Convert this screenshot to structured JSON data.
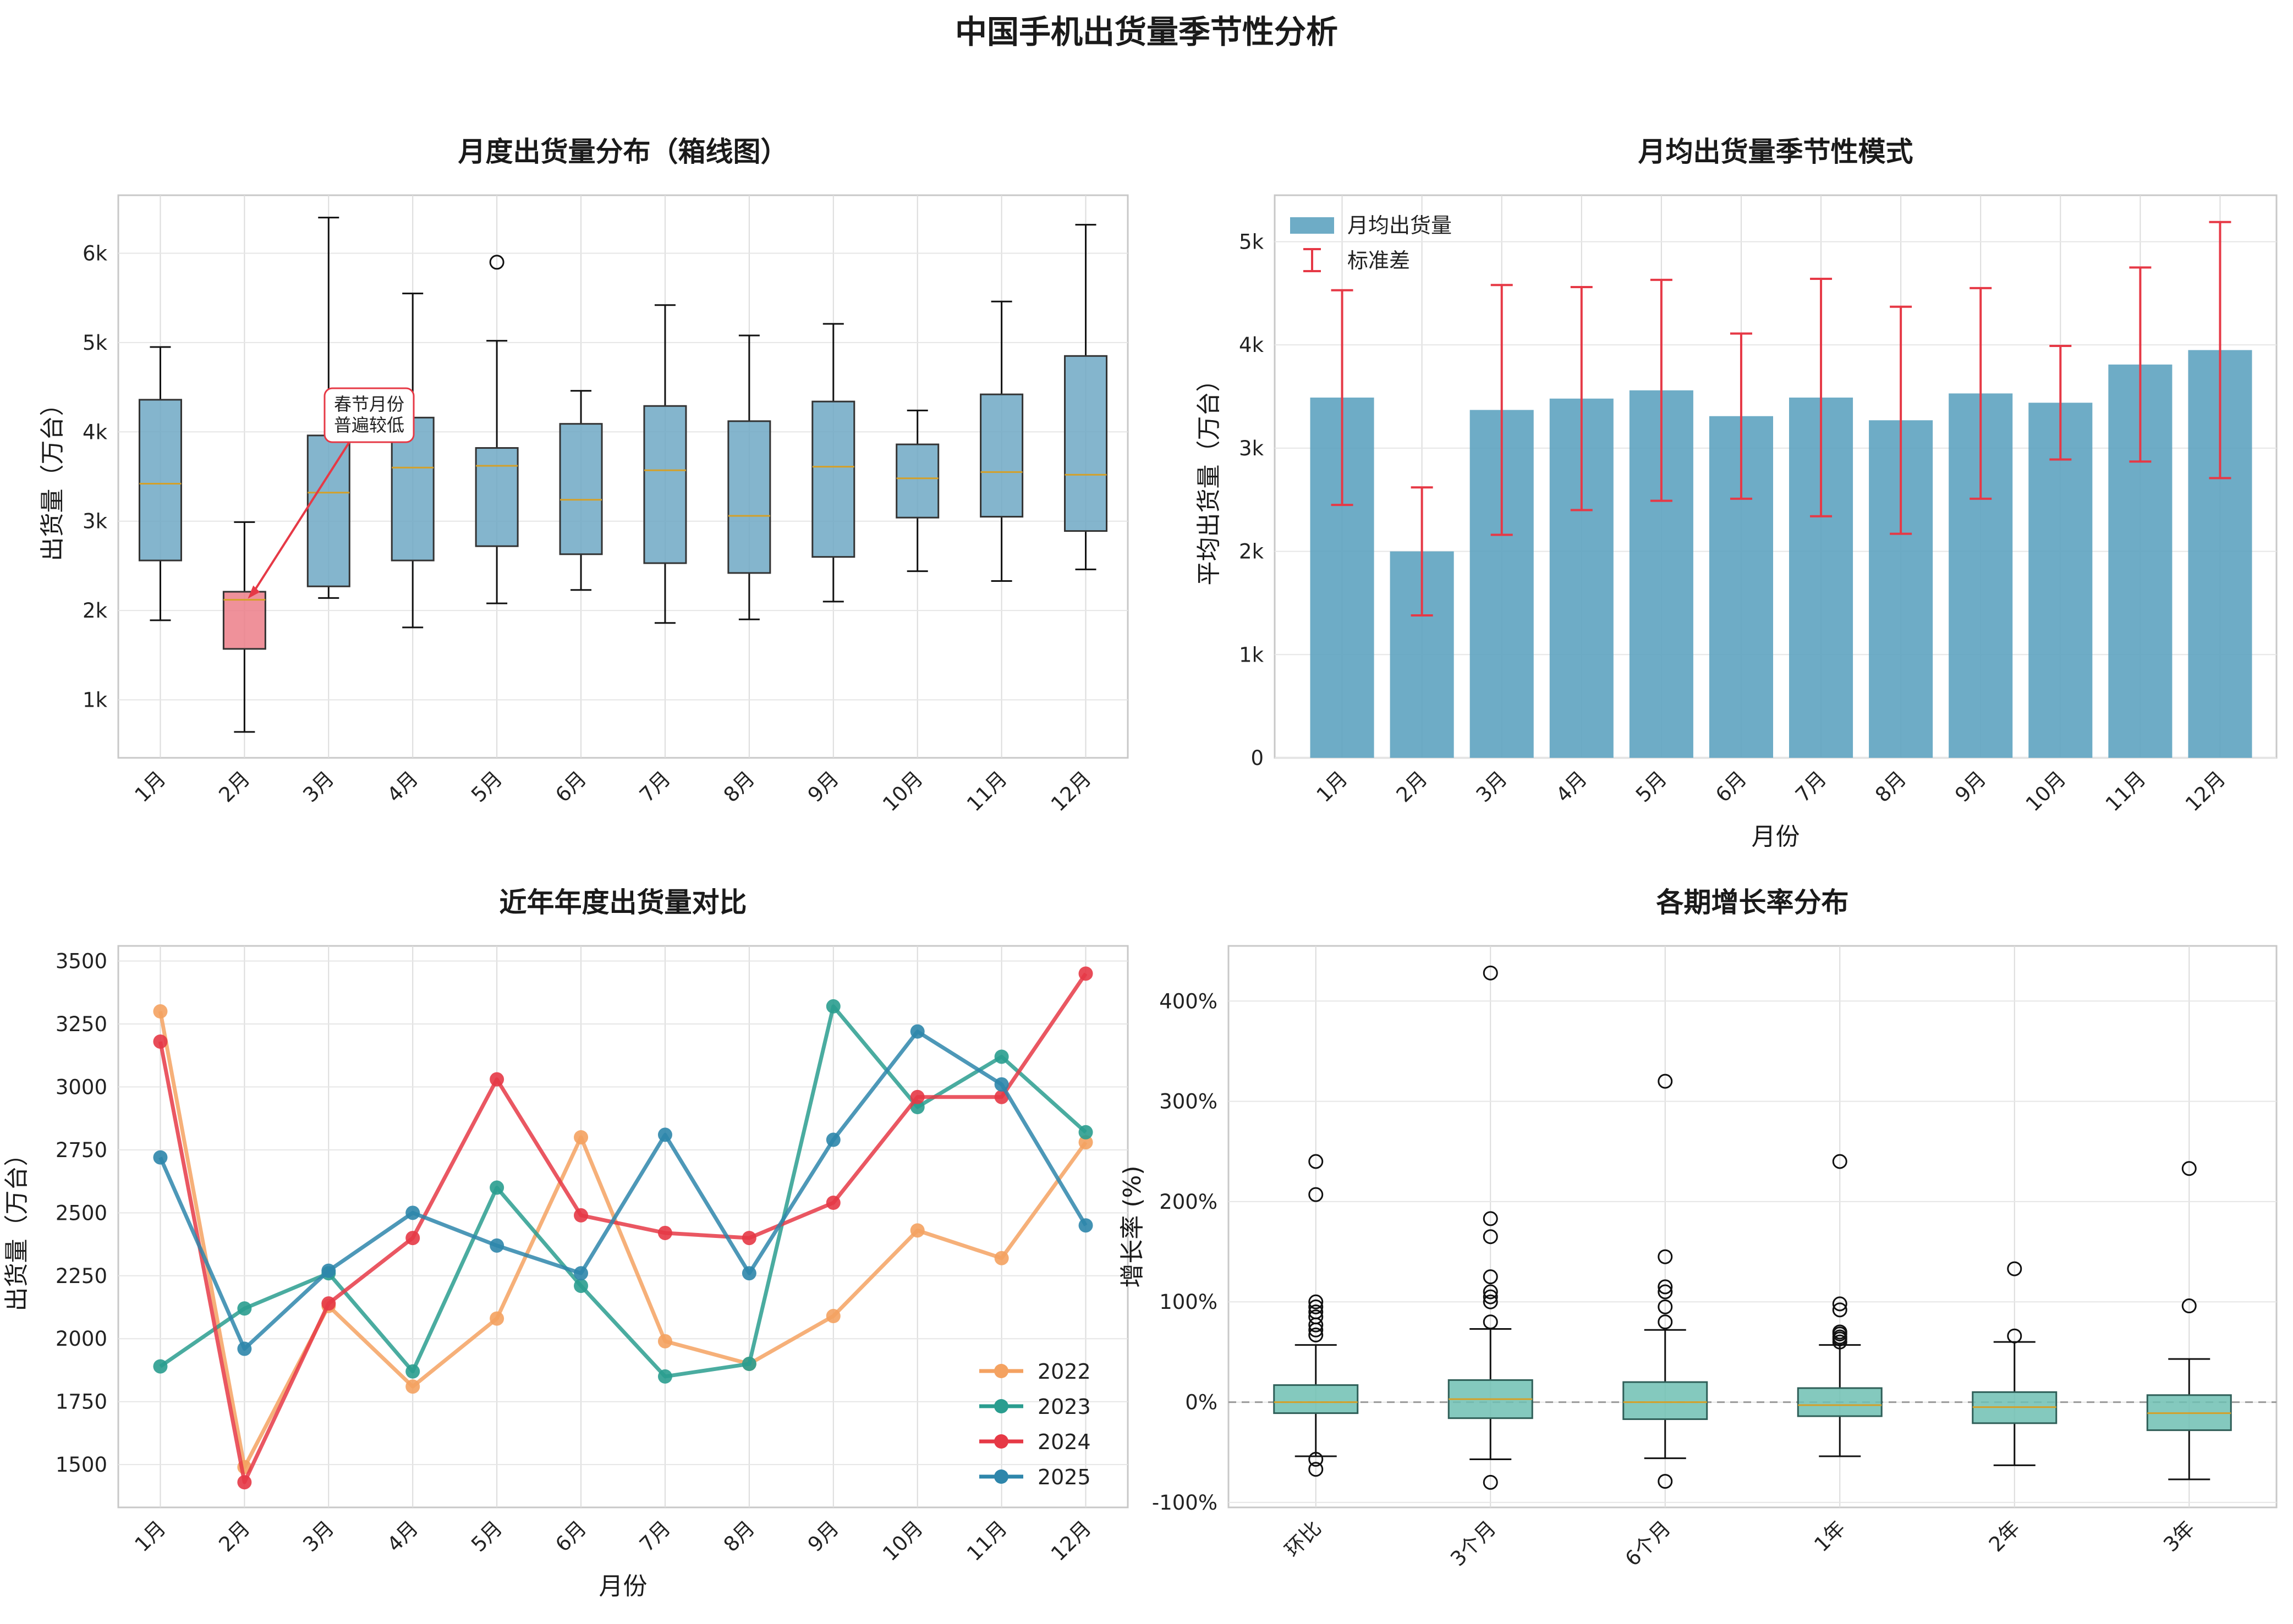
{
  "figure": {
    "title": "中国手机出货量季节性分析"
  },
  "colors": {
    "box_fill": "#6fa8c4",
    "box_highlight": "#ec7e88",
    "bar": "#5ea3c0",
    "error": "#e63946",
    "growth_box": "#6ec0b3",
    "median": "#d4a029",
    "s2022": "#f4a261",
    "s2023": "#2a9d8f",
    "s2024": "#e63946",
    "s2025": "#2e86ab"
  },
  "chart_data": [
    {
      "id": "p1",
      "type": "box",
      "title": "月度出货量分布（箱线图）",
      "xlabel": "",
      "ylabel": "出货量（万台）",
      "categories": [
        "1月",
        "2月",
        "3月",
        "4月",
        "5月",
        "6月",
        "7月",
        "8月",
        "9月",
        "10月",
        "11月",
        "12月"
      ],
      "boxes": [
        {
          "q1": 2560,
          "median": 3420,
          "q3": 4360,
          "whislo": 1890,
          "whishi": 4950,
          "fliers": []
        },
        {
          "q1": 1570,
          "median": 2120,
          "q3": 2210,
          "whislo": 640,
          "whishi": 2990,
          "fliers": []
        },
        {
          "q1": 2270,
          "median": 3320,
          "q3": 3960,
          "whislo": 2140,
          "whishi": 6400,
          "fliers": []
        },
        {
          "q1": 2560,
          "median": 3600,
          "q3": 4160,
          "whislo": 1810,
          "whishi": 5550,
          "fliers": []
        },
        {
          "q1": 2720,
          "median": 3620,
          "q3": 3820,
          "whislo": 2080,
          "whishi": 5020,
          "fliers": [
            5900
          ]
        },
        {
          "q1": 2630,
          "median": 3240,
          "q3": 4090,
          "whislo": 2230,
          "whishi": 4460,
          "fliers": []
        },
        {
          "q1": 2530,
          "median": 3570,
          "q3": 4290,
          "whislo": 1860,
          "whishi": 5420,
          "fliers": []
        },
        {
          "q1": 2420,
          "median": 3060,
          "q3": 4120,
          "whislo": 1900,
          "whishi": 5080,
          "fliers": []
        },
        {
          "q1": 2600,
          "median": 3610,
          "q3": 4340,
          "whislo": 2100,
          "whishi": 5210,
          "fliers": []
        },
        {
          "q1": 3040,
          "median": 3480,
          "q3": 3860,
          "whislo": 2440,
          "whishi": 4240,
          "fliers": []
        },
        {
          "q1": 3050,
          "median": 3550,
          "q3": 4420,
          "whislo": 2330,
          "whishi": 5460,
          "fliers": []
        },
        {
          "q1": 2890,
          "median": 3520,
          "q3": 4850,
          "whislo": 2460,
          "whishi": 6320,
          "fliers": []
        }
      ],
      "highlight_index": 1,
      "yticks": [
        1000,
        2000,
        3000,
        4000,
        5000,
        6000
      ],
      "ytick_labels": [
        "1k",
        "2k",
        "3k",
        "4k",
        "5k",
        "6k"
      ],
      "ylim": [
        350,
        6650
      ],
      "annotation": {
        "lines": [
          "春节月份",
          "普遍较低"
        ],
        "target_category": "2月",
        "target_value": 2120
      }
    },
    {
      "id": "p2",
      "type": "bar",
      "title": "月均出货量季节性模式",
      "xlabel": "月份",
      "ylabel": "平均出货量（万台）",
      "categories": [
        "1月",
        "2月",
        "3月",
        "4月",
        "5月",
        "6月",
        "7月",
        "8月",
        "9月",
        "10月",
        "11月",
        "12月"
      ],
      "values": [
        3490,
        2000,
        3370,
        3480,
        3560,
        3310,
        3490,
        3270,
        3530,
        3440,
        3810,
        3950
      ],
      "errors": [
        1040,
        620,
        1210,
        1080,
        1070,
        800,
        1150,
        1100,
        1020,
        550,
        940,
        1240
      ],
      "legend": [
        "月均出货量",
        "标准差"
      ],
      "yticks": [
        0,
        1000,
        2000,
        3000,
        4000,
        5000
      ],
      "ytick_labels": [
        "0",
        "1k",
        "2k",
        "3k",
        "4k",
        "5k"
      ],
      "ylim": [
        0,
        5450
      ]
    },
    {
      "id": "p3",
      "type": "line",
      "title": "近年年度出货量对比",
      "xlabel": "月份",
      "ylabel": "出货量（万台）",
      "categories": [
        "1月",
        "2月",
        "3月",
        "4月",
        "5月",
        "6月",
        "7月",
        "8月",
        "9月",
        "10月",
        "11月",
        "12月"
      ],
      "series": [
        {
          "name": "2022",
          "values": [
            3300,
            1490,
            2130,
            1810,
            2080,
            2800,
            1990,
            1900,
            2090,
            2430,
            2320,
            2780
          ]
        },
        {
          "name": "2023",
          "values": [
            1890,
            2120,
            2260,
            1870,
            2600,
            2210,
            1850,
            1900,
            3320,
            2920,
            3120,
            2820
          ]
        },
        {
          "name": "2024",
          "values": [
            3180,
            1430,
            2140,
            2400,
            3030,
            2490,
            2420,
            2400,
            2540,
            2960,
            2960,
            3450
          ]
        },
        {
          "name": "2025",
          "values": [
            2720,
            1960,
            2270,
            2500,
            2370,
            2260,
            2810,
            2260,
            2790,
            3220,
            3010,
            2450
          ]
        }
      ],
      "yticks": [
        1500,
        1750,
        2000,
        2250,
        2500,
        2750,
        3000,
        3250,
        3500
      ],
      "ytick_labels": [
        "1500",
        "1750",
        "2000",
        "2250",
        "2500",
        "2750",
        "3000",
        "3250",
        "3500"
      ],
      "ylim": [
        1330,
        3560
      ],
      "legend_position": "lower right"
    },
    {
      "id": "p4",
      "type": "box",
      "title": "各期增长率分布",
      "xlabel": "",
      "ylabel": "增长率 (%)",
      "categories": [
        "环比",
        "3个月",
        "6个月",
        "1年",
        "2年",
        "3年"
      ],
      "boxes": [
        {
          "q1": -11,
          "median": 0,
          "q3": 17,
          "whislo": -54,
          "whishi": 57,
          "fliers": [
            -57,
            -67,
            67,
            72,
            77,
            85,
            90,
            95,
            100,
            207,
            240
          ]
        },
        {
          "q1": -16,
          "median": 3,
          "q3": 22,
          "whislo": -57,
          "whishi": 73,
          "fliers": [
            -80,
            80,
            100,
            105,
            110,
            125,
            165,
            183,
            428
          ]
        },
        {
          "q1": -17,
          "median": 0,
          "q3": 20,
          "whislo": -56,
          "whishi": 72,
          "fliers": [
            -79,
            80,
            95,
            110,
            115,
            145,
            320
          ]
        },
        {
          "q1": -14,
          "median": -3,
          "q3": 14,
          "whislo": -54,
          "whishi": 57,
          "fliers": [
            60,
            63,
            65,
            68,
            70,
            92,
            98,
            240
          ]
        },
        {
          "q1": -21,
          "median": -5,
          "q3": 10,
          "whislo": -63,
          "whishi": 60,
          "fliers": [
            66,
            133
          ]
        },
        {
          "q1": -28,
          "median": -11,
          "q3": 7,
          "whislo": -77,
          "whishi": 43,
          "fliers": [
            96,
            233
          ]
        }
      ],
      "yticks": [
        -100,
        0,
        100,
        200,
        300,
        400
      ],
      "ytick_labels": [
        "-100%",
        "0%",
        "100%",
        "200%",
        "300%",
        "400%"
      ],
      "ylim": [
        -105,
        455
      ],
      "reference_line": 0
    }
  ]
}
